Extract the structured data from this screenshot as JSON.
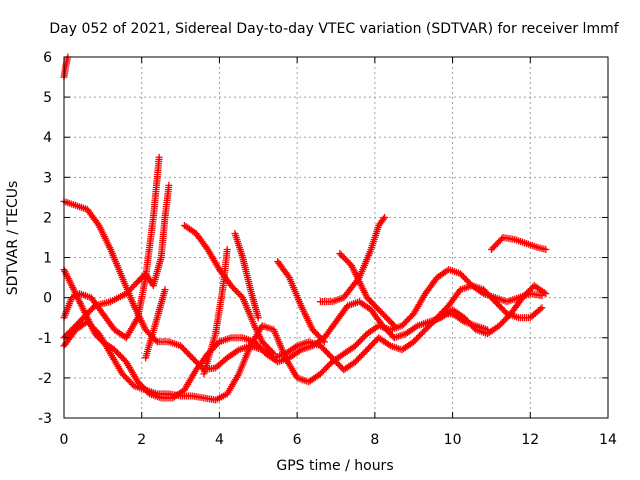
{
  "chart_data": {
    "type": "scatter",
    "title": "Day 052 of 2021, Sidereal Day-to-day VTEC variation (SDTVAR) for receiver lmmf",
    "xlabel": "GPS time / hours",
    "ylabel": "SDTVAR / TECUs",
    "xlim": [
      0,
      14
    ],
    "ylim": [
      -3,
      6
    ],
    "xticks": [
      "0",
      "2",
      "4",
      "6",
      "8",
      "10",
      "12",
      "14"
    ],
    "yticks": [
      "-3",
      "-2",
      "-1",
      "0",
      "1",
      "2",
      "3",
      "4",
      "5",
      "6"
    ],
    "grid": true,
    "marker": "+",
    "color": "#ff0000",
    "series": [
      {
        "points": [
          [
            0.0,
            5.5
          ],
          [
            0.05,
            5.8
          ],
          [
            0.1,
            6.0
          ]
        ]
      },
      {
        "points": [
          [
            0.0,
            2.4
          ],
          [
            0.3,
            2.3
          ],
          [
            0.6,
            2.2
          ],
          [
            0.9,
            1.8
          ],
          [
            1.2,
            1.2
          ],
          [
            1.5,
            0.5
          ],
          [
            1.8,
            -0.2
          ],
          [
            2.1,
            -0.8
          ],
          [
            2.4,
            -1.1
          ],
          [
            2.7,
            -1.1
          ],
          [
            3.0,
            -1.2
          ],
          [
            3.3,
            -1.5
          ],
          [
            3.6,
            -1.8
          ],
          [
            3.9,
            -1.75
          ],
          [
            4.2,
            -1.5
          ],
          [
            4.5,
            -1.3
          ],
          [
            4.8,
            -1.2
          ],
          [
            5.1,
            -1.3
          ],
          [
            5.4,
            -1.5
          ],
          [
            5.7,
            -1.4
          ],
          [
            6.0,
            -1.2
          ],
          [
            6.3,
            -1.1
          ],
          [
            6.6,
            -1.2
          ],
          [
            6.9,
            -1.5
          ],
          [
            7.2,
            -1.8
          ],
          [
            7.5,
            -1.6
          ],
          [
            7.8,
            -1.3
          ],
          [
            8.1,
            -1.0
          ],
          [
            8.4,
            -1.2
          ],
          [
            8.7,
            -1.3
          ],
          [
            9.0,
            -1.1
          ],
          [
            9.3,
            -0.8
          ],
          [
            9.6,
            -0.5
          ],
          [
            9.9,
            -0.2
          ],
          [
            10.2,
            0.2
          ],
          [
            10.5,
            0.3
          ],
          [
            10.8,
            0.2
          ],
          [
            11.1,
            -0.1
          ],
          [
            11.4,
            -0.4
          ],
          [
            11.7,
            -0.5
          ],
          [
            12.0,
            -0.5
          ],
          [
            12.3,
            -0.25
          ]
        ]
      },
      {
        "points": [
          [
            0.0,
            0.7
          ],
          [
            0.2,
            0.3
          ],
          [
            0.4,
            -0.1
          ],
          [
            0.6,
            -0.5
          ],
          [
            0.8,
            -0.9
          ],
          [
            1.0,
            -1.1
          ],
          [
            1.3,
            -1.3
          ],
          [
            1.6,
            -1.6
          ],
          [
            1.9,
            -2.1
          ],
          [
            2.2,
            -2.4
          ],
          [
            2.5,
            -2.5
          ],
          [
            2.8,
            -2.5
          ],
          [
            3.1,
            -2.3
          ],
          [
            3.4,
            -1.8
          ],
          [
            3.7,
            -1.4
          ],
          [
            4.0,
            -1.1
          ],
          [
            4.3,
            -1.0
          ],
          [
            4.6,
            -1.0
          ],
          [
            4.9,
            -1.1
          ],
          [
            5.2,
            -1.4
          ],
          [
            5.5,
            -1.6
          ],
          [
            5.8,
            -1.5
          ],
          [
            6.1,
            -1.3
          ],
          [
            6.4,
            -1.2
          ],
          [
            6.7,
            -1.0
          ],
          [
            7.0,
            -0.6
          ],
          [
            7.3,
            -0.2
          ],
          [
            7.6,
            -0.1
          ],
          [
            7.9,
            -0.3
          ],
          [
            8.2,
            -0.7
          ],
          [
            8.5,
            -1.0
          ],
          [
            8.8,
            -0.9
          ],
          [
            9.1,
            -0.7
          ],
          [
            9.4,
            -0.6
          ],
          [
            9.7,
            -0.5
          ],
          [
            10.0,
            -0.3
          ],
          [
            10.3,
            -0.5
          ],
          [
            10.6,
            -0.8
          ],
          [
            10.9,
            -0.9
          ],
          [
            11.2,
            -0.7
          ],
          [
            11.5,
            -0.4
          ],
          [
            11.8,
            0.0
          ],
          [
            12.1,
            0.3
          ],
          [
            12.4,
            0.1
          ]
        ]
      },
      {
        "points": [
          [
            0.0,
            -1.2
          ],
          [
            0.3,
            -0.8
          ],
          [
            0.6,
            -0.6
          ],
          [
            0.9,
            -0.9
          ],
          [
            1.2,
            -1.4
          ],
          [
            1.5,
            -1.9
          ],
          [
            1.8,
            -2.2
          ],
          [
            2.1,
            -2.3
          ],
          [
            2.4,
            -2.4
          ],
          [
            2.7,
            -2.4
          ],
          [
            3.0,
            -2.45
          ],
          [
            3.3,
            -2.45
          ],
          [
            3.6,
            -2.5
          ],
          [
            3.9,
            -2.55
          ],
          [
            4.2,
            -2.4
          ],
          [
            4.5,
            -1.9
          ],
          [
            4.8,
            -1.2
          ],
          [
            5.1,
            -0.7
          ],
          [
            5.4,
            -0.8
          ],
          [
            5.7,
            -1.5
          ],
          [
            6.0,
            -2.0
          ],
          [
            6.3,
            -2.1
          ],
          [
            6.6,
            -1.9
          ],
          [
            6.9,
            -1.6
          ],
          [
            7.2,
            -1.4
          ],
          [
            7.5,
            -1.2
          ],
          [
            7.8,
            -0.9
          ],
          [
            8.1,
            -0.7
          ],
          [
            8.4,
            -0.8
          ],
          [
            8.7,
            -0.7
          ],
          [
            9.0,
            -0.4
          ],
          [
            9.3,
            0.1
          ],
          [
            9.6,
            0.5
          ],
          [
            9.9,
            0.7
          ],
          [
            10.2,
            0.6
          ],
          [
            10.5,
            0.3
          ],
          [
            10.8,
            0.1
          ],
          [
            11.1,
            0.0
          ],
          [
            11.4,
            -0.1
          ],
          [
            11.7,
            0.0
          ],
          [
            12.0,
            0.1
          ],
          [
            12.3,
            0.05
          ]
        ]
      },
      {
        "points": [
          [
            0.0,
            -0.5
          ],
          [
            0.2,
            0.0
          ],
          [
            0.4,
            0.1
          ],
          [
            0.7,
            0.0
          ],
          [
            1.0,
            -0.4
          ],
          [
            1.3,
            -0.8
          ],
          [
            1.6,
            -1.0
          ],
          [
            1.9,
            -0.5
          ],
          [
            2.1,
            0.5
          ],
          [
            2.3,
            2.0
          ],
          [
            2.45,
            3.5
          ]
        ]
      },
      {
        "points": [
          [
            0.0,
            -1.0
          ],
          [
            0.4,
            -0.6
          ],
          [
            0.8,
            -0.2
          ],
          [
            1.2,
            -0.1
          ],
          [
            1.6,
            0.1
          ],
          [
            1.9,
            0.4
          ],
          [
            2.1,
            0.6
          ],
          [
            2.3,
            0.3
          ],
          [
            2.5,
            1.0
          ],
          [
            2.6,
            2.0
          ],
          [
            2.7,
            2.8
          ]
        ]
      },
      {
        "points": [
          [
            2.1,
            -1.5
          ],
          [
            2.4,
            -0.5
          ],
          [
            2.6,
            0.2
          ]
        ]
      },
      {
        "points": [
          [
            3.1,
            1.8
          ],
          [
            3.4,
            1.6
          ],
          [
            3.7,
            1.2
          ],
          [
            4.0,
            0.7
          ],
          [
            4.3,
            0.3
          ],
          [
            4.6,
            0.0
          ],
          [
            4.9,
            -0.7
          ],
          [
            5.1,
            -1.1
          ],
          [
            5.4,
            -1.4
          ]
        ]
      },
      {
        "points": [
          [
            3.6,
            -1.9
          ],
          [
            3.9,
            -0.9
          ],
          [
            4.1,
            0.3
          ],
          [
            4.2,
            1.2
          ]
        ]
      },
      {
        "points": [
          [
            4.4,
            1.6
          ],
          [
            4.6,
            1.0
          ],
          [
            4.8,
            0.2
          ],
          [
            5.0,
            -0.5
          ]
        ]
      },
      {
        "points": [
          [
            5.5,
            0.9
          ],
          [
            5.8,
            0.5
          ],
          [
            6.1,
            -0.2
          ],
          [
            6.4,
            -0.8
          ],
          [
            6.7,
            -1.1
          ]
        ]
      },
      {
        "points": [
          [
            6.6,
            -0.1
          ],
          [
            6.9,
            -0.1
          ],
          [
            7.2,
            0.0
          ],
          [
            7.6,
            0.5
          ],
          [
            7.9,
            1.2
          ],
          [
            8.1,
            1.8
          ],
          [
            8.25,
            2.0
          ]
        ]
      },
      {
        "points": [
          [
            7.1,
            1.1
          ],
          [
            7.4,
            0.8
          ],
          [
            7.6,
            0.4
          ],
          [
            7.8,
            0.0
          ],
          [
            8.0,
            -0.2
          ],
          [
            8.3,
            -0.5
          ],
          [
            8.5,
            -0.7
          ]
        ]
      },
      {
        "points": [
          [
            9.5,
            -0.6
          ],
          [
            9.8,
            -0.4
          ],
          [
            10.0,
            -0.4
          ],
          [
            10.3,
            -0.6
          ],
          [
            10.6,
            -0.7
          ],
          [
            10.9,
            -0.8
          ]
        ]
      },
      {
        "points": [
          [
            11.0,
            1.2
          ],
          [
            11.3,
            1.5
          ],
          [
            11.6,
            1.45
          ],
          [
            11.9,
            1.35
          ],
          [
            12.2,
            1.25
          ],
          [
            12.4,
            1.2
          ]
        ]
      }
    ]
  }
}
